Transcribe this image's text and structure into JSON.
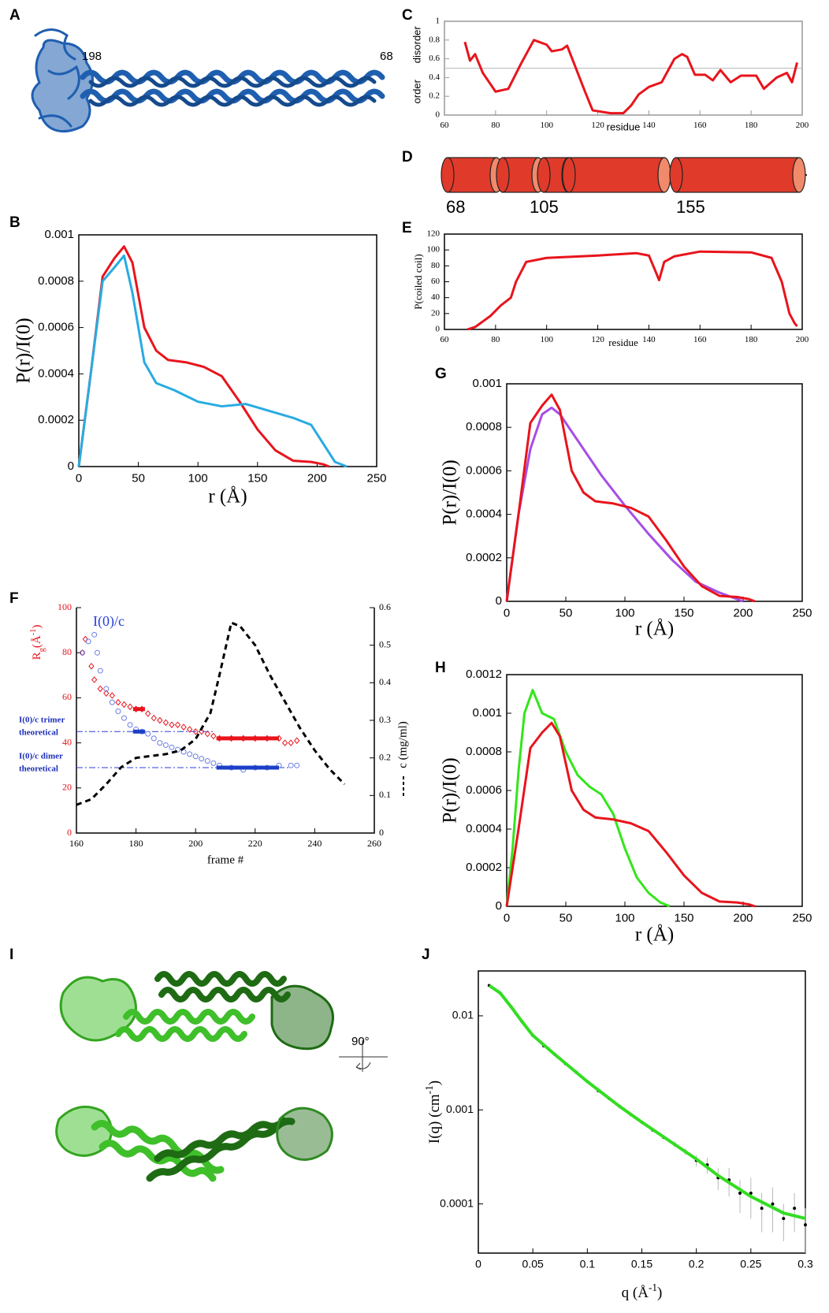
{
  "panels": {
    "A": {
      "label": "A",
      "residues": [
        "198",
        "68"
      ]
    },
    "D": {
      "label": "D",
      "residues": [
        "68",
        "105",
        "155"
      ]
    },
    "I": {
      "label": "I",
      "rotation": "90°"
    }
  },
  "chart_data": [
    {
      "panel": "B",
      "type": "line",
      "xlabel": "r (Å)",
      "ylabel": "P(r)/I(0)",
      "xlim": [
        0,
        250
      ],
      "xticks": [
        0,
        50,
        100,
        150,
        200,
        250
      ],
      "ylim": [
        0,
        0.001
      ],
      "yticks": [
        0,
        0.0002,
        0.0004,
        0.0006,
        0.0008,
        0.001
      ],
      "series": [
        {
          "color": "#e8141c",
          "x": [
            0,
            10,
            20,
            30,
            38,
            45,
            55,
            65,
            75,
            90,
            105,
            120,
            135,
            150,
            165,
            180,
            195,
            205,
            210
          ],
          "values": [
            0,
            0.0004,
            0.00082,
            0.0009,
            0.00095,
            0.00088,
            0.0006,
            0.0005,
            0.00046,
            0.00045,
            0.00043,
            0.00039,
            0.00028,
            0.00016,
            7e-05,
            2.5e-05,
            2e-05,
            1e-05,
            0
          ]
        },
        {
          "color": "#29abe2",
          "x": [
            0,
            10,
            20,
            30,
            38,
            45,
            55,
            65,
            80,
            100,
            120,
            140,
            160,
            180,
            195,
            205,
            215,
            225
          ],
          "values": [
            0,
            0.0004,
            0.0008,
            0.00086,
            0.00091,
            0.00075,
            0.00045,
            0.00036,
            0.00033,
            0.00028,
            0.00026,
            0.00027,
            0.00024,
            0.00021,
            0.00018,
            0.0001,
            2e-05,
            0
          ]
        }
      ]
    },
    {
      "panel": "C",
      "type": "line",
      "xlabel": "residue",
      "ylabel": [
        "order",
        "disorder"
      ],
      "xlim": [
        60,
        200
      ],
      "xticks": [
        60,
        80,
        100,
        120,
        140,
        160,
        180,
        200
      ],
      "ylim": [
        0,
        1
      ],
      "yticks": [
        0,
        0.2,
        0.4,
        0.6,
        0.8,
        1
      ],
      "hline": 0.5,
      "series": [
        {
          "color": "#e8141c",
          "x": [
            68,
            70,
            72,
            75,
            80,
            85,
            90,
            95,
            100,
            102,
            106,
            108,
            110,
            115,
            118,
            125,
            130,
            133,
            136,
            140,
            145,
            150,
            153,
            155,
            158,
            162,
            165,
            168,
            172,
            176,
            182,
            185,
            190,
            194,
            196,
            198
          ],
          "values": [
            0.78,
            0.58,
            0.65,
            0.45,
            0.25,
            0.28,
            0.55,
            0.8,
            0.75,
            0.68,
            0.7,
            0.74,
            0.6,
            0.25,
            0.05,
            0.02,
            0.02,
            0.1,
            0.22,
            0.3,
            0.35,
            0.6,
            0.65,
            0.62,
            0.43,
            0.43,
            0.37,
            0.48,
            0.35,
            0.42,
            0.42,
            0.28,
            0.4,
            0.45,
            0.35,
            0.56
          ]
        }
      ]
    },
    {
      "panel": "E",
      "type": "line",
      "xlabel": "residue",
      "ylabel": "P(coiled coil)",
      "xlim": [
        60,
        200
      ],
      "xticks": [
        60,
        80,
        100,
        120,
        140,
        160,
        180,
        200
      ],
      "ylim": [
        0,
        120
      ],
      "yticks": [
        0,
        20,
        40,
        60,
        80,
        100,
        120
      ],
      "series": [
        {
          "color": "#e8141c",
          "x": [
            69,
            72,
            75,
            78,
            82,
            86,
            88,
            92,
            100,
            120,
            135,
            140,
            143,
            144,
            146,
            150,
            160,
            180,
            188,
            192,
            195,
            197,
            198
          ],
          "values": [
            0,
            3,
            10,
            17,
            30,
            40,
            60,
            85,
            90,
            93,
            96,
            93,
            70,
            62,
            85,
            92,
            98,
            97,
            90,
            60,
            20,
            8,
            4
          ]
        }
      ]
    },
    {
      "panel": "F",
      "type": "scatter",
      "xlabel": "frame #",
      "ylabel": [
        {
          "text": "R"
        },
        {
          "text": "g",
          "shift": "sub"
        },
        {
          "text": "(Å"
        },
        {
          "text": "-1",
          "shift": "sup"
        },
        {
          "text": ")"
        }
      ],
      "ylabel_color": "#e8141c",
      "ytick_color": "#e8141c",
      "y2label": "c (mg/ml)",
      "xlim": [
        160,
        260
      ],
      "xticks": [
        160,
        180,
        200,
        220,
        240,
        260
      ],
      "ylim": [
        0,
        100
      ],
      "yticks": [
        0,
        20,
        40,
        60,
        80,
        100
      ],
      "y2lim": [
        0,
        0.6
      ],
      "y2ticks": [
        0,
        0.1,
        0.2,
        0.3,
        0.4,
        0.5,
        0.6
      ],
      "annotations": [
        {
          "lines": [
            "I(0)/c"
          ],
          "color": "#2a3fd8"
        },
        {
          "lines": [
            "I(0)/c trimer",
            "theoretical"
          ],
          "color": "#1c2fb8"
        },
        {
          "lines": [
            "I(0)/c dimer",
            "theoretical"
          ],
          "color": "#1c2fb8"
        }
      ],
      "reference_lines": [
        {
          "value": 45,
          "x_end": 206
        },
        {
          "value": 29,
          "x_end": 232
        }
      ],
      "averages": [
        {
          "x": [
            179,
            183
          ],
          "value": 55,
          "color": "#e8141c"
        },
        {
          "x": [
            207,
            228
          ],
          "value": 42,
          "color": "#e8141c"
        },
        {
          "x": [
            179,
            183
          ],
          "value": 45,
          "color": "#1c3fc8"
        },
        {
          "x": [
            207,
            228
          ],
          "value": 29,
          "color": "#1c3fc8"
        }
      ],
      "series": [
        {
          "color": "#e8141c",
          "marker": "diamond",
          "x": [
            162,
            163,
            165,
            166,
            168,
            170,
            172,
            174,
            176,
            178,
            180,
            182,
            184,
            186,
            188,
            190,
            192,
            194,
            196,
            198,
            200,
            202,
            204,
            206,
            208,
            212,
            216,
            220,
            224,
            228,
            230,
            232,
            234
          ],
          "values": [
            80,
            86,
            74,
            68,
            64,
            62,
            61,
            58,
            57,
            56,
            55,
            55,
            53,
            51,
            50,
            49,
            48,
            48,
            47,
            46,
            45,
            45,
            44,
            43,
            42,
            42,
            42,
            42,
            42,
            42,
            40,
            40,
            41
          ]
        },
        {
          "color": "#6b7fe0",
          "marker": "circle",
          "x": [
            162,
            164,
            166,
            167,
            168,
            170,
            172,
            174,
            176,
            178,
            180,
            182,
            184,
            186,
            188,
            190,
            192,
            194,
            196,
            198,
            200,
            202,
            204,
            206,
            208,
            212,
            216,
            220,
            224,
            228,
            232,
            234
          ],
          "values": [
            80,
            85,
            88,
            80,
            72,
            64,
            58,
            54,
            51,
            48,
            46,
            45,
            44,
            42,
            40,
            39,
            38,
            37,
            36,
            35,
            34,
            33,
            32,
            31,
            30,
            29,
            28,
            29,
            29,
            30,
            30,
            30
          ]
        },
        {
          "color": "#000000",
          "marker": "none",
          "line_style": "dashed",
          "axis": "y2",
          "x": [
            160,
            165,
            170,
            175,
            180,
            190,
            195,
            200,
            205,
            208,
            212,
            215,
            220,
            225,
            230,
            235,
            240,
            245,
            250
          ],
          "values": [
            0.075,
            0.09,
            0.13,
            0.175,
            0.2,
            0.21,
            0.22,
            0.25,
            0.32,
            0.42,
            0.56,
            0.55,
            0.5,
            0.42,
            0.35,
            0.28,
            0.22,
            0.17,
            0.13
          ]
        }
      ]
    },
    {
      "panel": "G",
      "type": "line",
      "xlabel": "r (Å)",
      "ylabel": "P(r)/I(0)",
      "xlim": [
        0,
        250
      ],
      "xticks": [
        0,
        50,
        100,
        150,
        200,
        250
      ],
      "ylim": [
        0,
        0.001
      ],
      "yticks": [
        0,
        0.0002,
        0.0004,
        0.0006,
        0.0008,
        0.001
      ],
      "series": [
        {
          "color": "#a64ee6",
          "x": [
            0,
            10,
            20,
            30,
            38,
            45,
            60,
            80,
            100,
            120,
            140,
            160,
            180,
            195,
            200
          ],
          "values": [
            0,
            0.0004,
            0.0007,
            0.00086,
            0.00089,
            0.00086,
            0.00074,
            0.00058,
            0.00044,
            0.00031,
            0.00019,
            9e-05,
            4e-05,
            1e-05,
            0
          ]
        },
        {
          "color": "#e8141c",
          "x": [
            0,
            10,
            20,
            30,
            38,
            45,
            55,
            65,
            75,
            90,
            105,
            120,
            135,
            150,
            165,
            180,
            195,
            205,
            210
          ],
          "values": [
            0,
            0.0004,
            0.00082,
            0.0009,
            0.00095,
            0.00088,
            0.0006,
            0.0005,
            0.00046,
            0.00045,
            0.00043,
            0.00039,
            0.00028,
            0.00016,
            7e-05,
            2.5e-05,
            2e-05,
            1e-05,
            0
          ]
        }
      ]
    },
    {
      "panel": "H",
      "type": "line",
      "xlabel": "r (Å)",
      "ylabel": "P(r)/I(0)",
      "xlim": [
        0,
        250
      ],
      "xticks": [
        0,
        50,
        100,
        150,
        200,
        250
      ],
      "ylim": [
        0,
        0.0012
      ],
      "yticks": [
        0,
        0.0002,
        0.0004,
        0.0006,
        0.0008,
        0.001,
        0.0012
      ],
      "series": [
        {
          "color": "#33e61a",
          "x": [
            0,
            5,
            10,
            15,
            22,
            30,
            40,
            50,
            60,
            70,
            80,
            90,
            100,
            110,
            120,
            130,
            138
          ],
          "values": [
            0,
            0.0003,
            0.0007,
            0.001,
            0.00112,
            0.001,
            0.00097,
            0.0008,
            0.00068,
            0.00062,
            0.00058,
            0.00048,
            0.0003,
            0.00015,
            7e-05,
            2e-05,
            0
          ]
        },
        {
          "color": "#e8141c",
          "x": [
            0,
            10,
            20,
            30,
            38,
            45,
            55,
            65,
            75,
            90,
            105,
            120,
            135,
            150,
            165,
            180,
            195,
            205,
            210
          ],
          "values": [
            0,
            0.0004,
            0.00082,
            0.0009,
            0.00095,
            0.00088,
            0.0006,
            0.0005,
            0.00046,
            0.00045,
            0.00043,
            0.00039,
            0.00028,
            0.00016,
            7e-05,
            2.5e-05,
            2e-05,
            1e-05,
            0
          ]
        }
      ]
    },
    {
      "panel": "J",
      "type": "scatter",
      "log_y": true,
      "xlabel": [
        {
          "text": "q (Å"
        },
        {
          "text": "-1",
          "shift": "sup"
        },
        {
          "text": ")"
        }
      ],
      "ylabel": [
        {
          "text": "I(q) (cm"
        },
        {
          "text": "-1",
          "shift": "sup"
        },
        {
          "text": ")"
        }
      ],
      "xlim": [
        0,
        0.3
      ],
      "xticks": [
        0,
        0.05,
        0.1,
        0.15,
        0.2,
        0.25,
        0.3
      ],
      "ylim": [
        3e-05,
        0.03
      ],
      "yticks": [
        0.0001,
        0.001,
        0.01
      ],
      "series": [
        {
          "color": "#000000",
          "marker": "dot",
          "error_color": "#b8b8b8",
          "x": [
            0.01,
            0.02,
            0.03,
            0.04,
            0.05,
            0.06,
            0.07,
            0.08,
            0.09,
            0.1,
            0.11,
            0.12,
            0.13,
            0.14,
            0.15,
            0.16,
            0.17,
            0.18,
            0.19,
            0.2,
            0.21,
            0.22,
            0.23,
            0.24,
            0.25,
            0.26,
            0.27,
            0.28,
            0.29,
            0.3
          ],
          "values": [
            0.021,
            0.0175,
            0.0125,
            0.0087,
            0.0062,
            0.0048,
            0.0039,
            0.0031,
            0.0025,
            0.002,
            0.0016,
            0.00132,
            0.00108,
            0.00089,
            0.00074,
            0.00061,
            0.00051,
            0.00043,
            0.00036,
            0.00029,
            0.00026,
            0.00019,
            0.00018,
            0.00013,
            0.00013,
            9e-05,
            0.0001,
            7e-05,
            9e-05,
            6e-05
          ],
          "errors": [
            0.0002,
            0.0002,
            0.0001,
            0.0001,
            0.0001,
            8e-05,
            6e-05,
            5e-05,
            4e-05,
            3e-05,
            3e-05,
            2e-05,
            2e-05,
            2e-05,
            2e-05,
            2e-05,
            2e-05,
            3e-05,
            3e-05,
            4e-05,
            5e-05,
            5e-05,
            6e-05,
            5e-05,
            6e-05,
            4e-05,
            5e-05,
            3e-05,
            4e-05,
            3e-05
          ]
        },
        {
          "color": "#33dd22",
          "marker": "none",
          "line_width": 4,
          "x": [
            0.01,
            0.02,
            0.03,
            0.04,
            0.05,
            0.07,
            0.1,
            0.13,
            0.15,
            0.18,
            0.2,
            0.22,
            0.25,
            0.28,
            0.3
          ],
          "values": [
            0.021,
            0.0175,
            0.0125,
            0.0087,
            0.0062,
            0.0039,
            0.002,
            0.00108,
            0.00074,
            0.00043,
            0.0003,
            0.0002,
            0.00012,
            8e-05,
            7e-05
          ]
        }
      ]
    }
  ]
}
